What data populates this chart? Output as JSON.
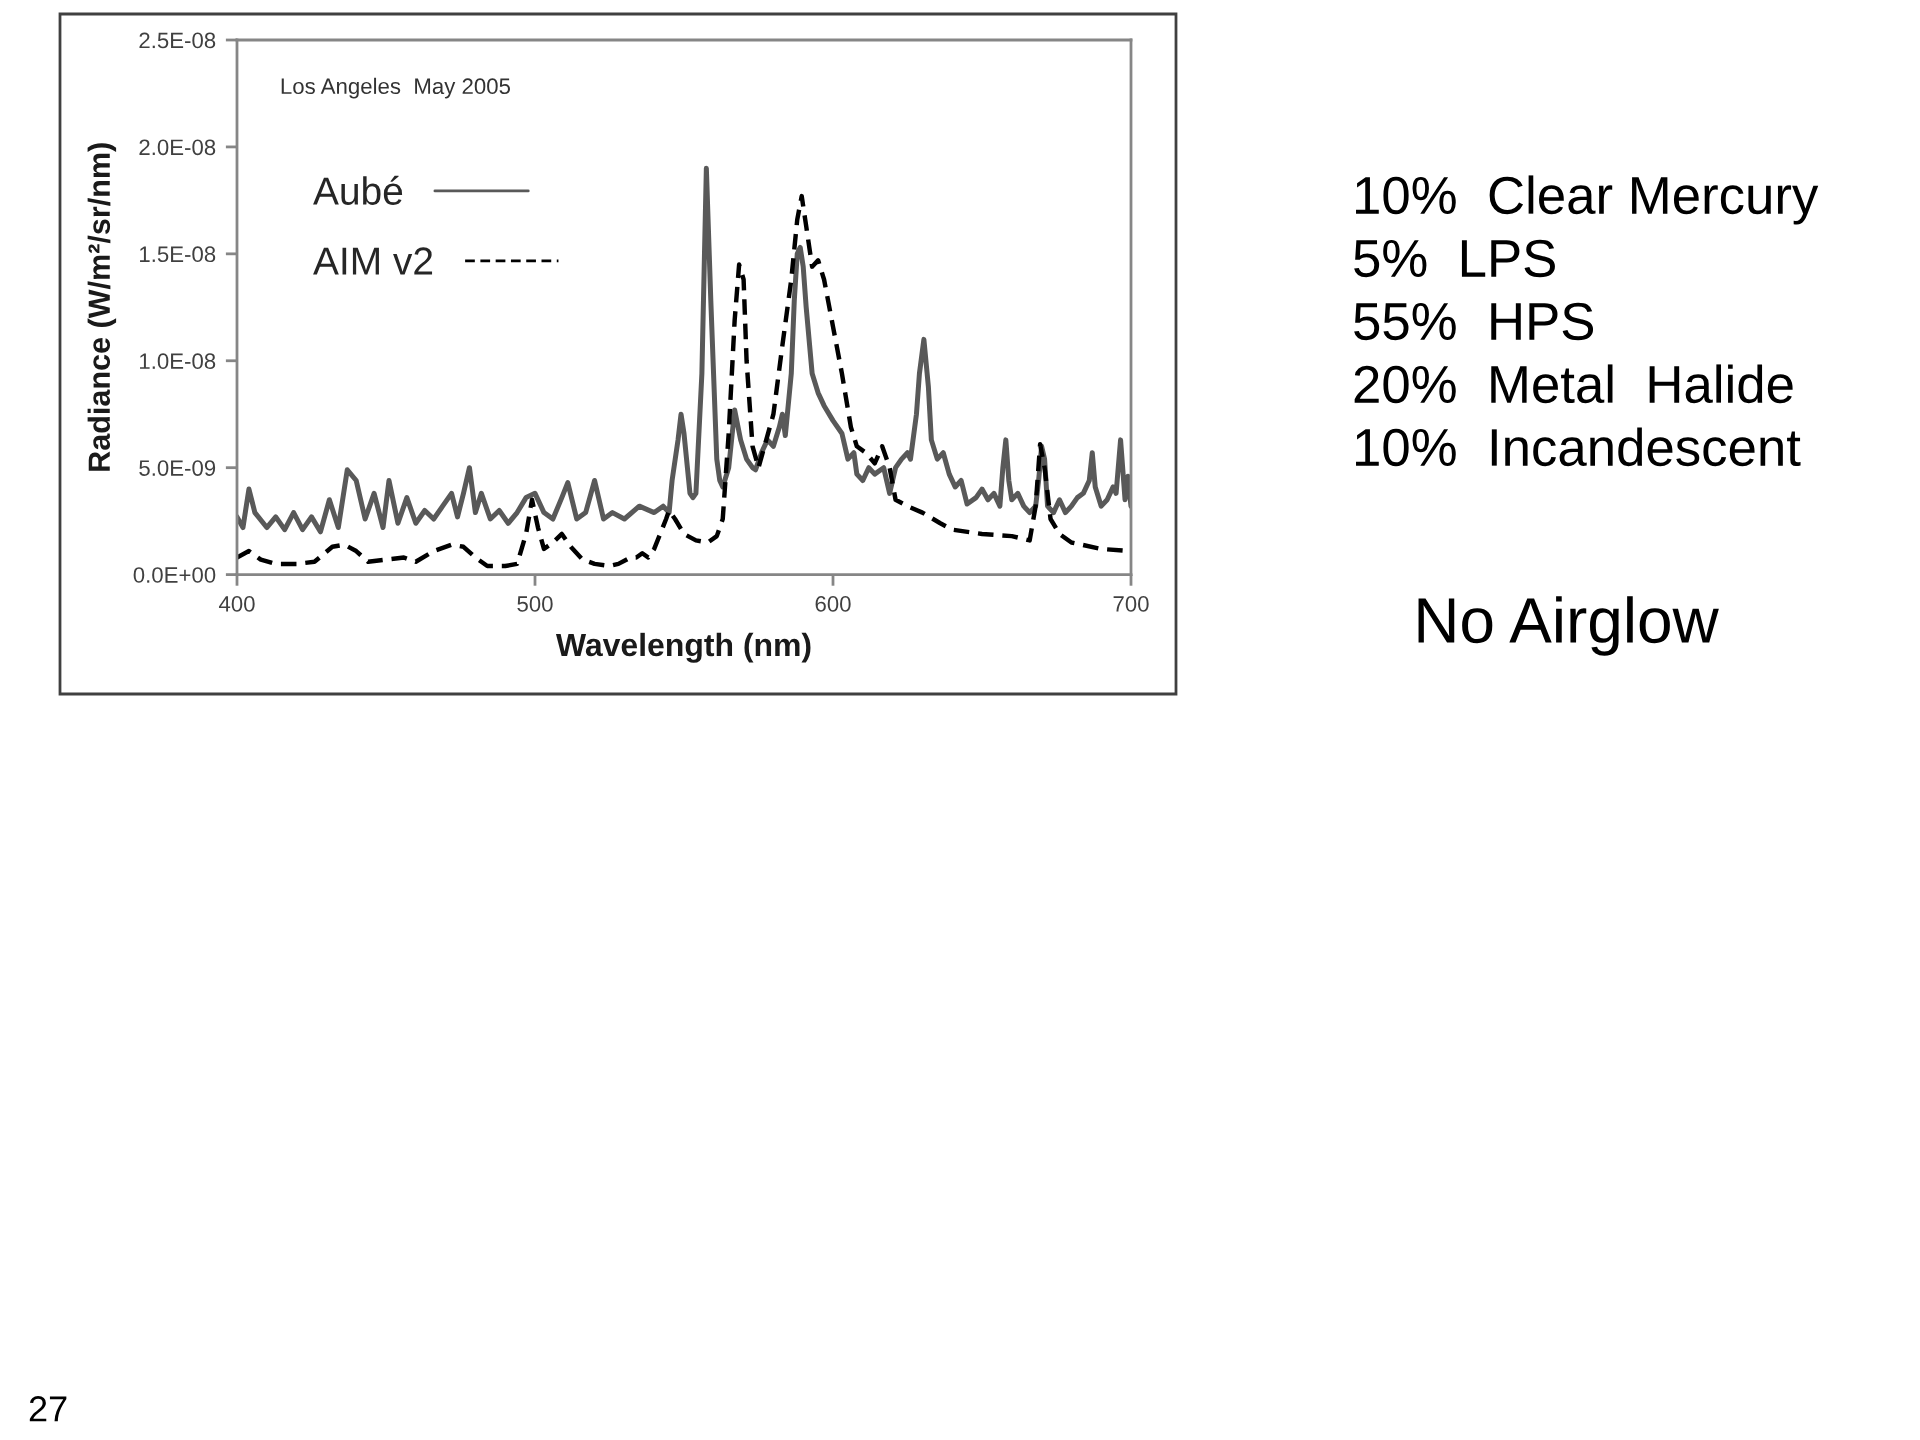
{
  "chart_data": {
    "type": "line",
    "title": "Los Angeles  May 2005",
    "xlabel": "Wavelength (nm)",
    "ylabel": "Radiance (W/m²/sr/nm)",
    "xlim": [
      400,
      700
    ],
    "xticks": [
      400,
      500,
      600,
      700
    ],
    "ylim": [
      0,
      2.5e-08
    ],
    "yticks": [
      {
        "value": 0,
        "label": "0.0E+00"
      },
      {
        "value": 5e-09,
        "label": "5.0E-09"
      },
      {
        "value": 1e-08,
        "label": "1.0E-08"
      },
      {
        "value": 1.5e-08,
        "label": "1.5E-08"
      },
      {
        "value": 2e-08,
        "label": "2.0E-08"
      },
      {
        "value": 2.5e-08,
        "label": "2.5E-08"
      }
    ],
    "grid": false,
    "legend": "top left",
    "series": [
      {
        "name": "Aubé",
        "color": "#595959",
        "line_style": "solid",
        "x": [
          400,
          402,
          404,
          406,
          410,
          413,
          416,
          419,
          422,
          425,
          428,
          431,
          434,
          437,
          440,
          443,
          446,
          449,
          451,
          454,
          457,
          460,
          463,
          466,
          469,
          472,
          474,
          476,
          478,
          480,
          482,
          485,
          488,
          491,
          494,
          497,
          500,
          503,
          506,
          509,
          511,
          514,
          517,
          520,
          523,
          526,
          530,
          535,
          540,
          543,
          545,
          546,
          548,
          549,
          550,
          552,
          553,
          554,
          556,
          557.5,
          559,
          561,
          562,
          563,
          565,
          567,
          569,
          571,
          573,
          574,
          576,
          578,
          580,
          582,
          583,
          584,
          586,
          587,
          588,
          589,
          590,
          591,
          593,
          595,
          597,
          600,
          603,
          605,
          607,
          608,
          610,
          612,
          614,
          617,
          619,
          621,
          623,
          625,
          626,
          628,
          629,
          630.5,
          632,
          633,
          635,
          637,
          639,
          641,
          643,
          645,
          648,
          650,
          652,
          654,
          656,
          657,
          658,
          659,
          660,
          662,
          664,
          666,
          668,
          669,
          670,
          671,
          672,
          674,
          676,
          678,
          680,
          682,
          684,
          686,
          687,
          688,
          690,
          692,
          694,
          695,
          696.5,
          698,
          699,
          700
        ],
        "values": [
          2.7e-09,
          2.2e-09,
          4e-09,
          2.9e-09,
          2.2e-09,
          2.7e-09,
          2.1e-09,
          2.9e-09,
          2.1e-09,
          2.7e-09,
          2e-09,
          3.5e-09,
          2.2e-09,
          4.9e-09,
          4.4e-09,
          2.6e-09,
          3.8e-09,
          2.2e-09,
          4.4e-09,
          2.4e-09,
          3.6e-09,
          2.4e-09,
          3e-09,
          2.6e-09,
          3.2e-09,
          3.8e-09,
          2.7e-09,
          3.8e-09,
          5e-09,
          2.9e-09,
          3.8e-09,
          2.6e-09,
          3e-09,
          2.4e-09,
          2.9e-09,
          3.6e-09,
          3.8e-09,
          2.9e-09,
          2.6e-09,
          3.6e-09,
          4.3e-09,
          2.6e-09,
          2.9e-09,
          4.4e-09,
          2.6e-09,
          2.9e-09,
          2.6e-09,
          3.2e-09,
          2.9e-09,
          3.2e-09,
          2.9e-09,
          4.4e-09,
          6.3e-09,
          7.5e-09,
          6.6e-09,
          3.8e-09,
          3.6e-09,
          3.8e-09,
          9.4e-09,
          1.9e-08,
          1.28e-08,
          5.4e-09,
          4.4e-09,
          4.1e-09,
          5e-09,
          7.7e-09,
          6.3e-09,
          5.4e-09,
          5e-09,
          4.9e-09,
          5.7e-09,
          6.3e-09,
          6e-09,
          6.9e-09,
          7.5e-09,
          6.5e-09,
          9.4e-09,
          1.28e-08,
          1.5e-08,
          1.53e-08,
          1.44e-08,
          1.25e-08,
          9.4e-09,
          8.5e-09,
          7.9e-09,
          7.2e-09,
          6.6e-09,
          5.4e-09,
          5.7e-09,
          4.7e-09,
          4.4e-09,
          5e-09,
          4.7e-09,
          5e-09,
          3.8e-09,
          5e-09,
          5.4e-09,
          5.7e-09,
          5.4e-09,
          7.5e-09,
          9.4e-09,
          1.1e-08,
          8.8e-09,
          6.3e-09,
          5.4e-09,
          5.7e-09,
          4.7e-09,
          4.1e-09,
          4.4e-09,
          3.3e-09,
          3.6e-09,
          4e-09,
          3.5e-09,
          3.8e-09,
          3.2e-09,
          5e-09,
          6.3e-09,
          4.4e-09,
          3.5e-09,
          3.8e-09,
          3.2e-09,
          2.9e-09,
          3.2e-09,
          4.4e-09,
          6e-09,
          5.4e-09,
          3.2e-09,
          2.9e-09,
          3.5e-09,
          2.9e-09,
          3.2e-09,
          3.6e-09,
          3.8e-09,
          4.4e-09,
          5.7e-09,
          4.1e-09,
          3.2e-09,
          3.5e-09,
          4.1e-09,
          3.8e-09,
          6.3e-09,
          3.5e-09,
          4.6e-09,
          3.2e-09
        ]
      },
      {
        "name": "AIM v2",
        "color": "#000000",
        "line_style": "dashed",
        "x": [
          400,
          404,
          408,
          413,
          420,
          426,
          432,
          436,
          440,
          444,
          450,
          456,
          460,
          466,
          472,
          476,
          480,
          484,
          490,
          494,
          497,
          499,
          501,
          503,
          506,
          509,
          512,
          516,
          520,
          525,
          528,
          532,
          534,
          536,
          538,
          540,
          542,
          544,
          545,
          547,
          550,
          554,
          558,
          561,
          563,
          565,
          567,
          568.5,
          570,
          571,
          573,
          575,
          577,
          580,
          583,
          586,
          588,
          589.5,
          591,
          593,
          595,
          597,
          600,
          603,
          606,
          608,
          611,
          614,
          616.5,
          619,
          621,
          625,
          630,
          636,
          640,
          650,
          660,
          666,
          668,
          669.5,
          671,
          673,
          676,
          680,
          690,
          700
        ],
        "values": [
          8e-10,
          1.1e-09,
          7e-10,
          5e-10,
          5e-10,
          6e-10,
          1.3e-09,
          1.4e-09,
          1.1e-09,
          6e-10,
          7e-10,
          8e-10,
          6e-10,
          1.1e-09,
          1.4e-09,
          1.3e-09,
          8e-10,
          4e-10,
          4e-10,
          5e-10,
          1.9e-09,
          3.5e-09,
          2.2e-09,
          1.2e-09,
          1.5e-09,
          1.9e-09,
          1.3e-09,
          7e-10,
          5e-10,
          4e-10,
          5e-10,
          8e-10,
          8e-10,
          1e-09,
          8e-10,
          1.2e-09,
          1.9e-09,
          2.6e-09,
          3e-09,
          2.6e-09,
          1.9e-09,
          1.6e-09,
          1.5e-09,
          1.8e-09,
          2.6e-09,
          6.6e-09,
          1.19e-08,
          1.45e-08,
          1.38e-08,
          1e-08,
          6e-09,
          5e-09,
          6e-09,
          7.5e-09,
          1.07e-08,
          1.38e-08,
          1.66e-08,
          1.77e-08,
          1.63e-08,
          1.44e-08,
          1.47e-08,
          1.38e-08,
          1.16e-08,
          9.4e-09,
          6.9e-09,
          6e-09,
          5.7e-09,
          5.2e-09,
          6e-09,
          5e-09,
          3.5e-09,
          3.2e-09,
          2.9e-09,
          2.4e-09,
          2.1e-09,
          1.9e-09,
          1.8e-09,
          1.6e-09,
          3.2e-09,
          6.1e-09,
          5e-09,
          2.6e-09,
          1.9e-09,
          1.5e-09,
          1.2e-09,
          1.1e-09
        ]
      }
    ],
    "annotations": [
      "10%  Clear Mercury",
      "5%  LPS",
      "55%  HPS",
      "20%  Metal  Halide",
      "10%  Incandescent",
      "No Airglow",
      "27"
    ]
  }
}
